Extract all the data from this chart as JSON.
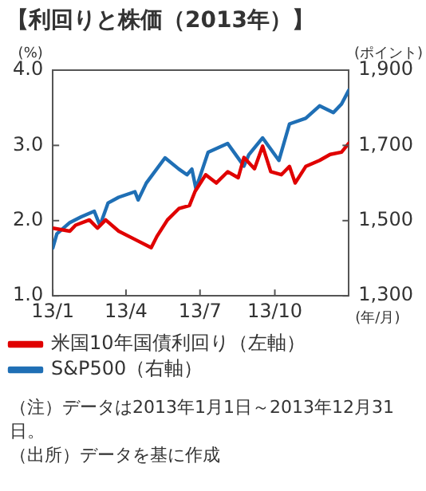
{
  "chart_data": {
    "type": "line",
    "title": "【利回りと株価（2013年）】",
    "ylabel": "(%)",
    "y2label": "(ポイント)",
    "xlabel": "(年/月)",
    "xlim": [
      "2013-01-01",
      "2013-12-31"
    ],
    "xticks": [
      {
        "value": "2013-01-01",
        "label": "13/1"
      },
      {
        "value": "2013-04-01",
        "label": "13/4"
      },
      {
        "value": "2013-07-01",
        "label": "13/7"
      },
      {
        "value": "2013-10-01",
        "label": "13/10"
      }
    ],
    "ylim": [
      1,
      4
    ],
    "yticks": [
      {
        "value": 1,
        "label": "1.0"
      },
      {
        "value": 2,
        "label": "2.0"
      },
      {
        "value": 3,
        "label": "3.0"
      },
      {
        "value": 4,
        "label": "4.0"
      }
    ],
    "y2lim": [
      1300,
      1900
    ],
    "y2ticks": [
      {
        "value": 1300,
        "label": "1,300"
      },
      {
        "value": 1500,
        "label": "1,500"
      },
      {
        "value": 1700,
        "label": "1,700"
      },
      {
        "value": 1900,
        "label": "1,900"
      }
    ],
    "legend": "bottom",
    "marker": "none",
    "series": [
      {
        "name": "米国10年国債利回り（左軸）",
        "color": "#e00000",
        "x": [
          "2013-01-01",
          "2013-01-22",
          "2013-01-29",
          "2013-02-15",
          "2013-02-25",
          "2013-03-07",
          "2013-03-23",
          "2013-04-12",
          "2013-05-02",
          "2013-05-09",
          "2013-05-22",
          "2013-06-05",
          "2013-06-18",
          "2013-06-25",
          "2013-07-08",
          "2013-07-21",
          "2013-08-04",
          "2013-08-17",
          "2013-08-24",
          "2013-09-06",
          "2013-09-16",
          "2013-09-26",
          "2013-10-09",
          "2013-10-19",
          "2013-10-26",
          "2013-11-08",
          "2013-11-25",
          "2013-12-08",
          "2013-12-22",
          "2013-12-31"
        ],
        "values": [
          1.9,
          1.86,
          1.94,
          2.01,
          1.9,
          2.01,
          1.86,
          1.75,
          1.64,
          1.79,
          2.01,
          2.16,
          2.2,
          2.39,
          2.61,
          2.5,
          2.65,
          2.57,
          2.84,
          2.69,
          2.99,
          2.65,
          2.61,
          2.72,
          2.5,
          2.72,
          2.8,
          2.88,
          2.91,
          3.03
        ]
      },
      {
        "name": "S&P500（右軸）",
        "color": "#1f6fb5",
        "axis": "y2",
        "x": [
          "2013-01-01",
          "2013-01-06",
          "2013-01-22",
          "2013-02-05",
          "2013-02-21",
          "2013-02-28",
          "2013-03-10",
          "2013-03-23",
          "2013-04-12",
          "2013-04-16",
          "2013-04-26",
          "2013-05-19",
          "2013-06-05",
          "2013-06-15",
          "2013-06-21",
          "2013-06-26",
          "2013-07-11",
          "2013-08-04",
          "2013-08-24",
          "2013-08-30",
          "2013-09-16",
          "2013-10-06",
          "2013-10-19",
          "2013-11-08",
          "2013-11-25",
          "2013-12-12",
          "2013-12-22",
          "2013-12-31"
        ],
        "values": [
          1427,
          1465,
          1495,
          1510,
          1525,
          1487,
          1547,
          1562,
          1577,
          1555,
          1600,
          1667,
          1637,
          1622,
          1637,
          1585,
          1682,
          1705,
          1645,
          1675,
          1720,
          1660,
          1757,
          1772,
          1805,
          1787,
          1810,
          1847
        ]
      }
    ],
    "annotations": [
      "（注）データは2013年1月1日～2013年12月31日。",
      "（出所）データを基に作成"
    ]
  }
}
